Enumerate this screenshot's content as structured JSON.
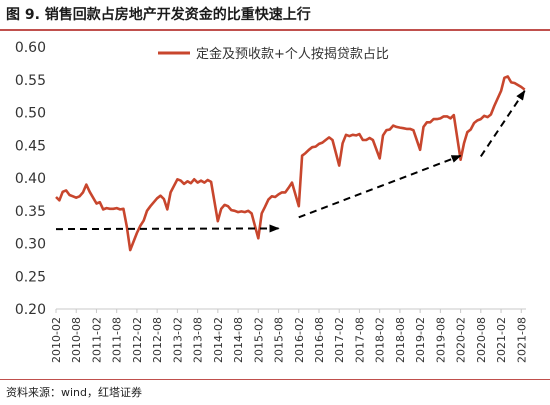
{
  "figure": {
    "title": "图 9. 销售回款占房地产开发资金的比重快速上行",
    "source": "资料来源：wind，红塔证券"
  },
  "colors": {
    "line": "#c8462d",
    "arrow": "#000000",
    "rule": "#c0504d",
    "axis": "#c8c8c8",
    "text": "#333333"
  },
  "chart_data": {
    "type": "line",
    "title": "图 9. 销售回款占房地产开发资金的比重快速上行",
    "xlabel": "",
    "ylabel": "",
    "ylim": [
      0.2,
      0.6
    ],
    "yticks": [
      "0.20",
      "0.25",
      "0.30",
      "0.35",
      "0.40",
      "0.45",
      "0.50",
      "0.55",
      "0.60"
    ],
    "xticks": [
      "2010-02",
      "2010-08",
      "2011-02",
      "2011-08",
      "2012-02",
      "2012-08",
      "2013-02",
      "2013-08",
      "2014-02",
      "2014-08",
      "2015-02",
      "2015-08",
      "2016-02",
      "2016-08",
      "2017-02",
      "2017-08",
      "2018-02",
      "2018-08",
      "2019-02",
      "2019-08",
      "2020-02",
      "2020-08",
      "2021-02",
      "2021-08"
    ],
    "grid": false,
    "legend": "top",
    "series": [
      {
        "name": "定金及预收款+个人按揭贷款占比",
        "x": [
          "2010-02",
          "2010-03",
          "2010-04",
          "2010-05",
          "2010-06",
          "2010-07",
          "2010-08",
          "2010-09",
          "2010-10",
          "2010-11",
          "2010-12",
          "2011-02",
          "2011-03",
          "2011-04",
          "2011-05",
          "2011-06",
          "2011-07",
          "2011-08",
          "2011-09",
          "2011-10",
          "2011-11",
          "2011-12",
          "2012-02",
          "2012-03",
          "2012-04",
          "2012-05",
          "2012-06",
          "2012-07",
          "2012-08",
          "2012-09",
          "2012-10",
          "2012-11",
          "2012-12",
          "2013-02",
          "2013-03",
          "2013-04",
          "2013-05",
          "2013-06",
          "2013-07",
          "2013-08",
          "2013-09",
          "2013-10",
          "2013-11",
          "2013-12",
          "2014-02",
          "2014-03",
          "2014-04",
          "2014-05",
          "2014-06",
          "2014-07",
          "2014-08",
          "2014-09",
          "2014-10",
          "2014-11",
          "2014-12",
          "2015-02",
          "2015-03",
          "2015-04",
          "2015-05",
          "2015-06",
          "2015-07",
          "2015-08",
          "2015-09",
          "2015-10",
          "2015-11",
          "2015-12",
          "2016-02",
          "2016-03",
          "2016-04",
          "2016-05",
          "2016-06",
          "2016-07",
          "2016-08",
          "2016-09",
          "2016-10",
          "2016-11",
          "2016-12",
          "2017-02",
          "2017-03",
          "2017-04",
          "2017-05",
          "2017-06",
          "2017-07",
          "2017-08",
          "2017-09",
          "2017-10",
          "2017-11",
          "2017-12",
          "2018-02",
          "2018-03",
          "2018-04",
          "2018-05",
          "2018-06",
          "2018-07",
          "2018-08",
          "2018-09",
          "2018-10",
          "2018-11",
          "2018-12",
          "2019-02",
          "2019-03",
          "2019-04",
          "2019-05",
          "2019-06",
          "2019-07",
          "2019-08",
          "2019-09",
          "2019-10",
          "2019-11",
          "2019-12",
          "2020-02",
          "2020-03",
          "2020-04",
          "2020-05",
          "2020-06",
          "2020-07",
          "2020-08",
          "2020-09",
          "2020-10",
          "2020-11",
          "2020-12",
          "2021-02",
          "2021-03",
          "2021-04",
          "2021-05",
          "2021-06",
          "2021-07",
          "2021-08",
          "2021-09"
        ],
        "values": [
          0.371,
          0.366,
          0.379,
          0.381,
          0.374,
          0.372,
          0.37,
          0.372,
          0.378,
          0.39,
          0.379,
          0.361,
          0.363,
          0.352,
          0.354,
          0.353,
          0.353,
          0.354,
          0.352,
          0.353,
          0.326,
          0.29,
          0.316,
          0.327,
          0.335,
          0.35,
          0.357,
          0.363,
          0.369,
          0.373,
          0.368,
          0.352,
          0.378,
          0.398,
          0.396,
          0.391,
          0.395,
          0.392,
          0.398,
          0.393,
          0.396,
          0.393,
          0.397,
          0.394,
          0.334,
          0.353,
          0.359,
          0.357,
          0.351,
          0.35,
          0.348,
          0.349,
          0.348,
          0.35,
          0.346,
          0.308,
          0.346,
          0.356,
          0.367,
          0.372,
          0.371,
          0.375,
          0.378,
          0.378,
          0.385,
          0.393,
          0.357,
          0.434,
          0.438,
          0.443,
          0.447,
          0.448,
          0.452,
          0.454,
          0.458,
          0.462,
          0.458,
          0.419,
          0.453,
          0.466,
          0.464,
          0.466,
          0.465,
          0.467,
          0.458,
          0.458,
          0.461,
          0.458,
          0.43,
          0.465,
          0.473,
          0.474,
          0.48,
          0.478,
          0.477,
          0.476,
          0.475,
          0.475,
          0.473,
          0.443,
          0.478,
          0.485,
          0.485,
          0.49,
          0.49,
          0.491,
          0.494,
          0.494,
          0.491,
          0.496,
          0.428,
          0.453,
          0.47,
          0.474,
          0.484,
          0.488,
          0.49,
          0.495,
          0.493,
          0.497,
          0.51,
          0.533,
          0.553,
          0.555,
          0.546,
          0.545,
          0.542,
          0.539,
          0.535
        ]
      }
    ],
    "annotations": [
      {
        "type": "dashed-arrow",
        "from": [
          "2010-02",
          0.322
        ],
        "to": [
          "2015-08",
          0.323
        ]
      },
      {
        "type": "dashed-arrow",
        "from": [
          "2016-02",
          0.34
        ],
        "to": [
          "2020-02",
          0.434
        ]
      },
      {
        "type": "dashed-arrow",
        "from": [
          "2020-08",
          0.433
        ],
        "to": [
          "2021-09",
          0.533
        ]
      }
    ]
  }
}
